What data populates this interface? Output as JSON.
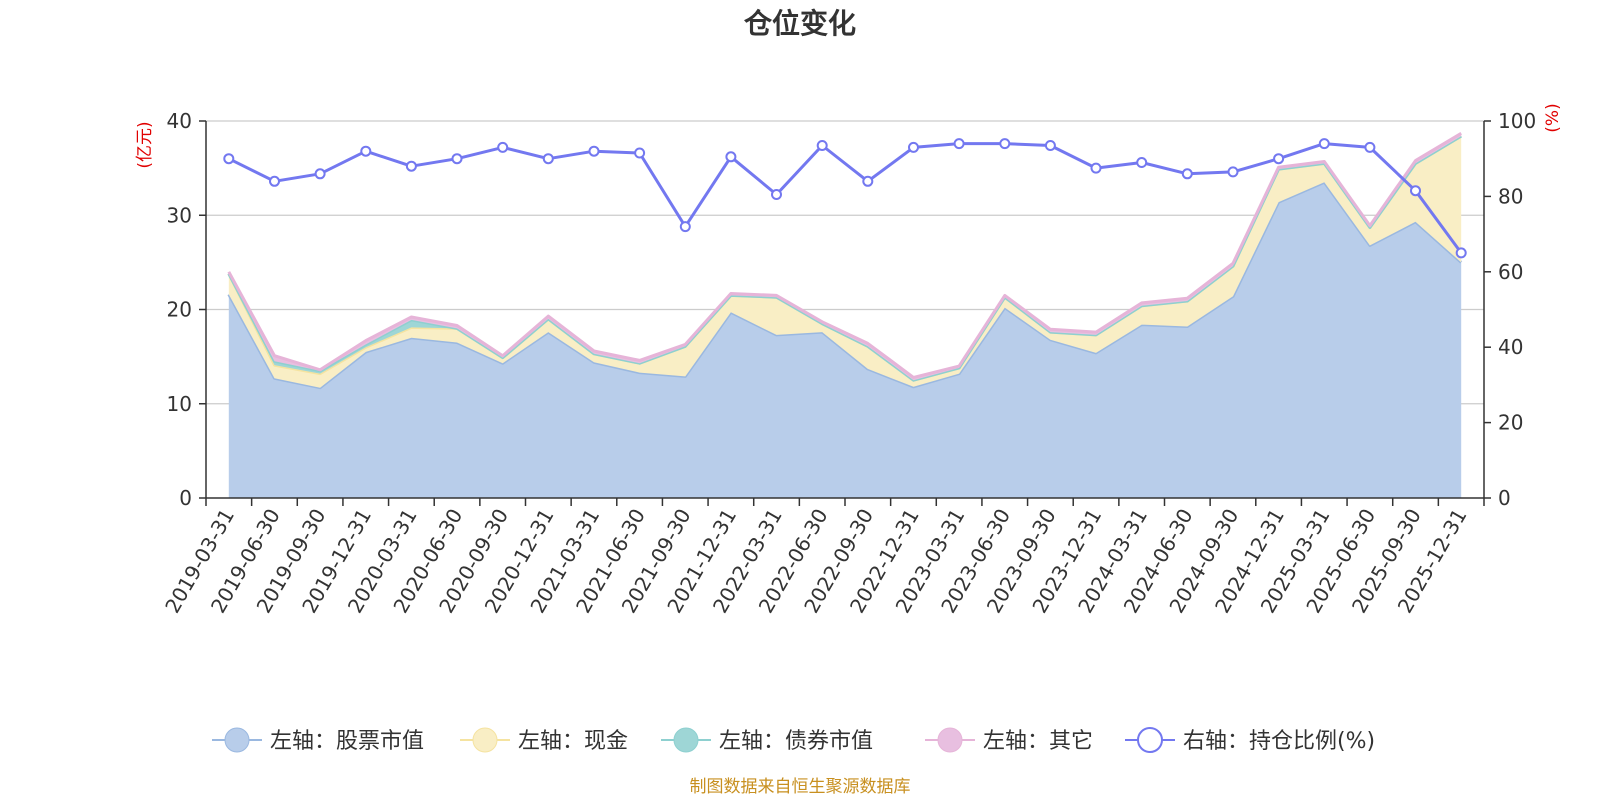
{
  "chart_data": {
    "type": "area",
    "title": "仓位变化",
    "left_unit": "(亿元)",
    "right_unit": "(%)",
    "ylim_left": [
      0,
      40
    ],
    "ylim_right": [
      0,
      100
    ],
    "yticks_left": [
      "0",
      "10",
      "20",
      "30",
      "40"
    ],
    "yticks_right": [
      "0",
      "20",
      "40",
      "60",
      "80",
      "100"
    ],
    "stacked": true,
    "grid": true,
    "legend_position": "bottom",
    "categories": [
      "2019-03-31",
      "2019-06-30",
      "2019-09-30",
      "2019-12-31",
      "2020-03-31",
      "2020-06-30",
      "2020-09-30",
      "2020-12-31",
      "2021-03-31",
      "2021-06-30",
      "2021-09-30",
      "2021-12-31",
      "2022-03-31",
      "2022-06-30",
      "2022-09-30",
      "2022-12-31",
      "2023-03-31",
      "2023-06-30",
      "2023-09-30",
      "2023-12-31",
      "2024-03-31",
      "2024-06-30",
      "2024-09-30",
      "2024-12-31",
      "2025-03-31",
      "2025-06-30",
      "2025-09-30",
      "2025-12-31"
    ],
    "series": [
      {
        "name": "左轴：股票市值",
        "axis": "left",
        "color": "#9ab8e0",
        "fill": "#b8cdea",
        "values": [
          21.6,
          12.7,
          11.7,
          15.5,
          17.0,
          16.5,
          14.3,
          17.6,
          14.4,
          13.3,
          12.9,
          19.7,
          17.3,
          17.6,
          13.7,
          11.8,
          13.2,
          20.2,
          16.8,
          15.4,
          18.4,
          18.2,
          21.4,
          31.4,
          33.5,
          26.8,
          29.3,
          25.0
        ]
      },
      {
        "name": "左轴：现金",
        "axis": "left",
        "color": "#f5e3a0",
        "fill": "#f9eec5",
        "values": [
          2.2,
          1.4,
          1.5,
          0.5,
          1.1,
          1.5,
          0.6,
          1.4,
          0.9,
          1.0,
          3.2,
          1.8,
          4.0,
          0.9,
          2.4,
          0.7,
          0.6,
          1.1,
          0.8,
          1.9,
          2.0,
          2.7,
          3.2,
          3.5,
          2.0,
          1.9,
          6.2,
          13.4
        ]
      },
      {
        "name": "左轴：债券市值",
        "axis": "left",
        "color": "#8ed0d0",
        "fill": "#9ed6d6",
        "values": [
          0,
          0.4,
          0.3,
          0.3,
          0.8,
          0,
          0,
          0,
          0,
          0,
          0,
          0,
          0,
          0,
          0,
          0,
          0,
          0,
          0,
          0,
          0,
          0,
          0,
          0,
          0,
          0,
          0,
          0
        ]
      },
      {
        "name": "左轴：其它",
        "axis": "left",
        "color": "#e6b4d8",
        "fill": "#e8bfe0",
        "values": [
          0.2,
          0.6,
          0.1,
          0.4,
          0.3,
          0.3,
          0.2,
          0.3,
          0.3,
          0.3,
          0.2,
          0.2,
          0.2,
          0.2,
          0.3,
          0.3,
          0.2,
          0.2,
          0.3,
          0.3,
          0.3,
          0.3,
          0.3,
          0.2,
          0.2,
          0.2,
          0.3,
          0.3
        ]
      },
      {
        "name": "右轴：持仓比例(%)",
        "axis": "right",
        "color": "#7378f0",
        "values": [
          90,
          84,
          86,
          92,
          88,
          90,
          93,
          90,
          92,
          91.5,
          72,
          90.5,
          80.5,
          93.5,
          84,
          93,
          94,
          94,
          93.5,
          87.5,
          89,
          86,
          86.5,
          90,
          94,
          93,
          81.5,
          65
        ]
      }
    ]
  },
  "footer": {
    "source": "制图数据来自恒生聚源数据库"
  }
}
